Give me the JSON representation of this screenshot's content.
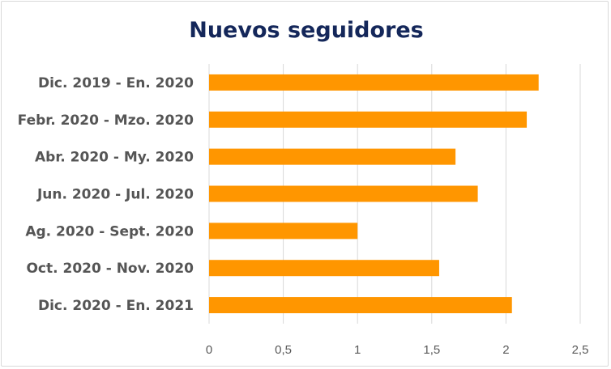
{
  "chart_data": {
    "type": "bar",
    "orientation": "horizontal",
    "title": "Nuevos seguidores",
    "categories": [
      "Dic. 2019 - En. 2020",
      "Febr. 2020 - Mzo. 2020",
      "Abr. 2020 - My. 2020",
      "Jun. 2020 - Jul. 2020",
      "Ag. 2020 - Sept. 2020",
      "Oct. 2020 - Nov. 2020",
      "Dic. 2020 - En. 2021"
    ],
    "values": [
      2.22,
      2.14,
      1.66,
      1.81,
      1.0,
      1.55,
      2.04
    ],
    "xlim": [
      0,
      2.5
    ],
    "x_ticks": [
      "0",
      "0,5",
      "1",
      "1,5",
      "2",
      "2,5"
    ],
    "x_tick_values": [
      0,
      0.5,
      1,
      1.5,
      2,
      2.5
    ],
    "grid": "vertical",
    "legend": "none",
    "colors": {
      "bar": "#ff9600",
      "title": "#14275a",
      "labels": "#555555",
      "grid": "#d9d9d9"
    }
  }
}
